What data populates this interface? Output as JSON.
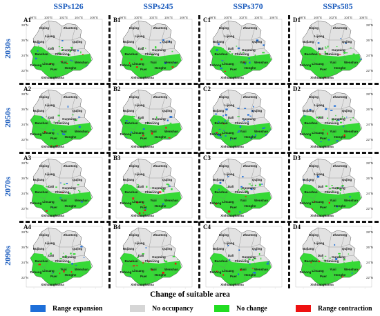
{
  "columns": [
    "SSPs126",
    "SSPs245",
    "SSPs370",
    "SSPs585"
  ],
  "rows": [
    "2030s",
    "2050s",
    "2070s",
    "2090s"
  ],
  "panels": [
    [
      "A1",
      "B1",
      "C1",
      "D1"
    ],
    [
      "A2",
      "B2",
      "C2",
      "D2"
    ],
    [
      "A3",
      "B3",
      "C3",
      "D3"
    ],
    [
      "A4",
      "B4",
      "C4",
      "D4"
    ]
  ],
  "places": [
    "Zhaotong",
    "Diqing",
    "Lijiang",
    "Nujiang",
    "Qujing",
    "Dali",
    "Chuxiong",
    "Kunming",
    "Baoshan",
    "Lincang",
    "Yuxi",
    "Dehong",
    "Puer",
    "Honghe",
    "Wenshan",
    "Xishuangbanna"
  ],
  "lon_ticks": [
    "98°E",
    "100°E",
    "102°E",
    "104°E",
    "106°E"
  ],
  "lat_ticks": [
    "28°N",
    "26°N",
    "24°N",
    "22°N"
  ],
  "xlabel": "Change of suitable area",
  "legend": [
    {
      "label": "Range expansion",
      "color": "#1e6fd9"
    },
    {
      "label": "No occupancy",
      "color": "#d6d6d6"
    },
    {
      "label": "No change",
      "color": "#22dd22"
    },
    {
      "label": "Range contraction",
      "color": "#ee1111"
    }
  ],
  "map_colors": {
    "occupied": "#36d936",
    "empty": "#e2e2e2",
    "border": "#7a7a7a"
  }
}
